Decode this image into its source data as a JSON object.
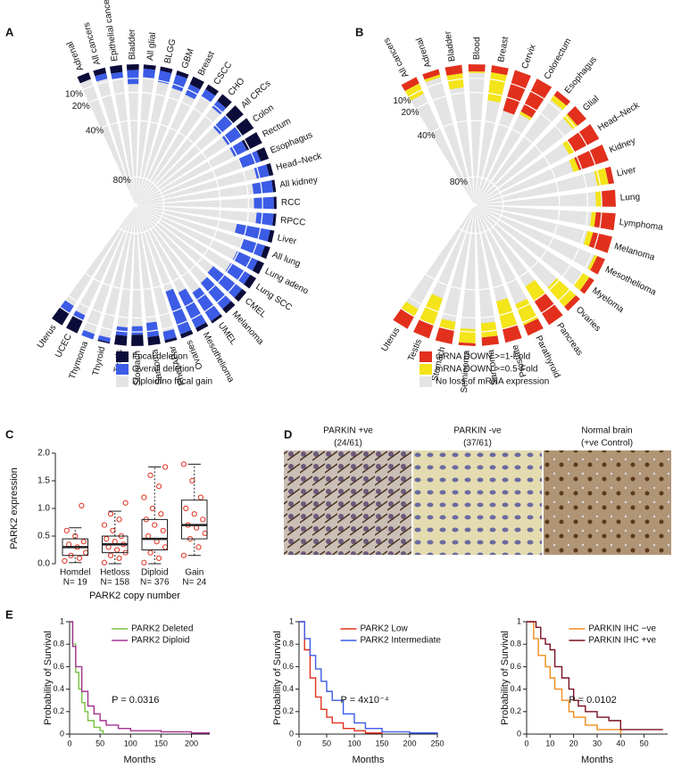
{
  "panel_labels": [
    "A",
    "B",
    "C",
    "D",
    "E"
  ],
  "panel_d": {
    "images": [
      {
        "title": "PARKIN +ve",
        "subtitle": "(24/61)"
      },
      {
        "title": "PARKIN -ve",
        "subtitle": "(37/61)"
      },
      {
        "title": "Normal brain",
        "subtitle": "(+ve Control)"
      }
    ]
  },
  "chart_data": [
    {
      "type": "radial",
      "categories": [
        "Adrenal",
        "All cancers",
        "Epithelial cancers",
        "Bladder",
        "All glial",
        "BLGG",
        "GBM",
        "Breast",
        "CSCC",
        "CHO",
        "All CRCs",
        "Colon",
        "Rectum",
        "Esophagus",
        "Head–Neck",
        "All kidney",
        "RCC",
        "RPCC",
        "Liver",
        "All lung",
        "Lung adeno",
        "Lung SCC",
        "CMEL",
        "Melanoma",
        "UMEL",
        "Mesothelioma",
        "Ovaries",
        "PheoAPar",
        "Sarcoma",
        "Stomach",
        "Testis",
        "Thyroid",
        "Thymoma",
        "UCEC",
        "Uterus"
      ],
      "series": [
        {
          "name": "Focal deletion",
          "color": "#0c0c3a",
          "values": [
            5,
            4,
            5,
            4,
            3,
            3,
            3,
            6,
            4,
            6,
            10,
            10,
            12,
            6,
            3,
            2,
            2,
            2,
            3,
            4,
            5,
            5,
            4,
            4,
            2,
            3,
            3,
            2,
            6,
            8,
            7,
            1,
            0,
            10,
            10
          ]
        },
        {
          "name": "Overall deletion",
          "color": "#3c5ce6",
          "values": [
            0,
            4,
            4,
            10,
            6,
            8,
            10,
            8,
            6,
            6,
            12,
            12,
            10,
            14,
            9,
            14,
            14,
            12,
            24,
            16,
            16,
            16,
            26,
            24,
            24,
            28,
            32,
            6,
            10,
            6,
            6,
            3,
            4,
            4,
            6
          ]
        }
      ],
      "background": {
        "name": "Diploid/no focal gain",
        "color": "#e4e4e4"
      },
      "ylim": [
        0,
        100
      ],
      "yticks": [
        {
          "value": 10,
          "label": "10%"
        },
        {
          "value": 20,
          "label": "20%"
        },
        {
          "value": 40,
          "label": "40%"
        },
        {
          "value": 80,
          "label": "80%"
        }
      ]
    },
    {
      "type": "radial",
      "categories": [
        "All cancers",
        "Adrenal",
        "Bladder",
        "Blood",
        "Breast",
        "Cervix",
        "Colorectum",
        "Esophagus",
        "Glial",
        "Head–Neck",
        "Kidney",
        "Liver",
        "Lung",
        "Lymphoma",
        "Melanoma",
        "Mesothelioma",
        "Myeloma",
        "Ovaries",
        "Pancreas",
        "Parathyroid",
        "Prostate",
        "Sarcoma",
        "Seminoma",
        "Stomach",
        "Testis",
        "Uterus"
      ],
      "series": [
        {
          "name": "mRNA DOWN >=1-Fold",
          "color": "#e2301d",
          "values": [
            5,
            4,
            6,
            5,
            5,
            30,
            26,
            4,
            8,
            20,
            22,
            4,
            10,
            14,
            14,
            6,
            4,
            4,
            20,
            8,
            10,
            6,
            2,
            10,
            10,
            10
          ]
        },
        {
          "name": "mRNA DOWN >=0.5-Fold",
          "color": "#f4e41a",
          "values": [
            8,
            2,
            10,
            1,
            20,
            0,
            2,
            4,
            4,
            4,
            4,
            8,
            4,
            3,
            4,
            2,
            6,
            18,
            12,
            16,
            20,
            10,
            10,
            6,
            20,
            6
          ]
        }
      ],
      "background": {
        "name": "No loss of mRNA expression",
        "color": "#e4e4e4"
      },
      "ylim": [
        0,
        100
      ],
      "yticks": [
        {
          "value": 10,
          "label": "10%"
        },
        {
          "value": 20,
          "label": "20%"
        },
        {
          "value": 40,
          "label": "40%"
        },
        {
          "value": 80,
          "label": "80%"
        }
      ]
    },
    {
      "type": "box",
      "y_label": "PARK2 expression",
      "x_label": "PARK2 copy number",
      "categories": [
        "Homdel",
        "Hetloss",
        "Diploid",
        "Gain"
      ],
      "counts": [
        "N= 19",
        "N= 158",
        "N= 376",
        "N= 24"
      ],
      "boxes": [
        {
          "low": 0.02,
          "q1": 0.15,
          "median": 0.3,
          "q3": 0.45,
          "high": 0.65
        },
        {
          "low": 0,
          "q1": 0.2,
          "median": 0.35,
          "q3": 0.5,
          "high": 0.95
        },
        {
          "low": 0,
          "q1": 0.25,
          "median": 0.45,
          "q3": 0.8,
          "high": 1.75
        },
        {
          "low": 0.15,
          "q1": 0.45,
          "median": 0.7,
          "q3": 1.15,
          "high": 1.8
        }
      ],
      "points": [
        [
          0.05,
          0.1,
          0.15,
          0.2,
          0.3,
          0.35,
          0.4,
          0.5,
          0.6,
          1.05
        ],
        [
          0.02,
          0.1,
          0.15,
          0.2,
          0.25,
          0.3,
          0.35,
          0.4,
          0.45,
          0.5,
          0.6,
          0.7,
          0.8,
          0.9,
          1.1
        ],
        [
          0.02,
          0.1,
          0.2,
          0.3,
          0.4,
          0.5,
          0.6,
          0.7,
          0.8,
          0.9,
          1.0,
          1.2,
          1.4,
          1.6,
          1.75
        ],
        [
          0.15,
          0.3,
          0.45,
          0.55,
          0.65,
          0.7,
          0.8,
          0.9,
          1.0,
          1.2,
          1.5,
          1.8
        ]
      ],
      "box_color": "#222222",
      "point_color": "#e2301d",
      "ylim": [
        0,
        2
      ],
      "yticks": [
        {
          "value": 0,
          "label": "0.0"
        },
        {
          "value": 0.5,
          "label": "0.5"
        },
        {
          "value": 1,
          "label": "1.0"
        },
        {
          "value": 1.5,
          "label": "1.5"
        },
        {
          "value": 2,
          "label": "2.0"
        }
      ]
    },
    {
      "type": "km",
      "y_label": "Probability of Survival",
      "x_label": "Months",
      "annotation": "P = 0.0316",
      "series": [
        {
          "name": "PARK2 Deleted",
          "color": "#7ac143",
          "x": [
            0,
            5,
            10,
            15,
            20,
            25,
            30,
            40,
            50,
            55
          ],
          "values": [
            1,
            0.8,
            0.55,
            0.4,
            0.28,
            0.2,
            0.12,
            0.06,
            0.03,
            0
          ]
        },
        {
          "name": "PARK2 Diploid",
          "color": "#a3338f",
          "x": [
            0,
            5,
            10,
            20,
            30,
            40,
            50,
            60,
            80,
            100,
            150,
            200,
            230
          ],
          "values": [
            1,
            0.78,
            0.6,
            0.38,
            0.25,
            0.18,
            0.12,
            0.08,
            0.05,
            0.03,
            0.02,
            0.01,
            0.01
          ]
        }
      ],
      "xlim": [
        0,
        230
      ],
      "xticks": [
        0,
        50,
        100,
        150,
        200
      ],
      "ylim": [
        0,
        1
      ],
      "yticks": [
        0,
        0.2,
        0.4,
        0.6,
        0.8,
        1
      ]
    },
    {
      "type": "km",
      "y_label": "Probability of Survival",
      "x_label": "Months",
      "annotation": "P = 4x10⁻⁴",
      "series": [
        {
          "name": "PARK2 Low",
          "color": "#e2301d",
          "x": [
            0,
            10,
            20,
            30,
            40,
            50,
            60,
            80,
            100,
            120,
            150
          ],
          "values": [
            1,
            0.75,
            0.5,
            0.33,
            0.22,
            0.15,
            0.1,
            0.05,
            0.03,
            0.01,
            0
          ]
        },
        {
          "name": "PARK2 Intermediate",
          "color": "#3c5ce6",
          "x": [
            0,
            10,
            20,
            30,
            40,
            50,
            60,
            80,
            100,
            120,
            150,
            200,
            250
          ],
          "values": [
            1,
            0.85,
            0.7,
            0.58,
            0.47,
            0.38,
            0.3,
            0.18,
            0.1,
            0.05,
            0.02,
            0.01,
            0
          ]
        }
      ],
      "xlim": [
        0,
        250
      ],
      "xticks": [
        0,
        50,
        100,
        150,
        200,
        250
      ],
      "ylim": [
        0,
        1
      ],
      "yticks": [
        0,
        0.2,
        0.4,
        0.6,
        0.8,
        1
      ]
    },
    {
      "type": "km",
      "y_label": "Probability of Survival",
      "x_label": "Months",
      "annotation": "P = 0.0102",
      "series": [
        {
          "name": "PARKIN IHC −ve",
          "color": "#f08c1a",
          "x": [
            0,
            3,
            5,
            8,
            10,
            12,
            15,
            18,
            20,
            25,
            30,
            40
          ],
          "values": [
            1,
            0.85,
            0.7,
            0.6,
            0.5,
            0.4,
            0.3,
            0.2,
            0.15,
            0.08,
            0.04,
            0
          ]
        },
        {
          "name": "PARKIN IHC +ve",
          "color": "#7a1020",
          "x": [
            0,
            4,
            6,
            8,
            10,
            12,
            15,
            18,
            20,
            22,
            25,
            30,
            35,
            40,
            42,
            58
          ],
          "values": [
            1,
            0.95,
            0.85,
            0.8,
            0.75,
            0.6,
            0.5,
            0.4,
            0.3,
            0.25,
            0.2,
            0.15,
            0.12,
            0.04,
            0.04,
            0.04
          ]
        }
      ],
      "xlim": [
        0,
        60
      ],
      "xticks": [
        0,
        10,
        20,
        30,
        40,
        50
      ],
      "ylim": [
        0,
        1
      ],
      "yticks": [
        0,
        0.2,
        0.4,
        0.6,
        0.8,
        1
      ]
    }
  ]
}
